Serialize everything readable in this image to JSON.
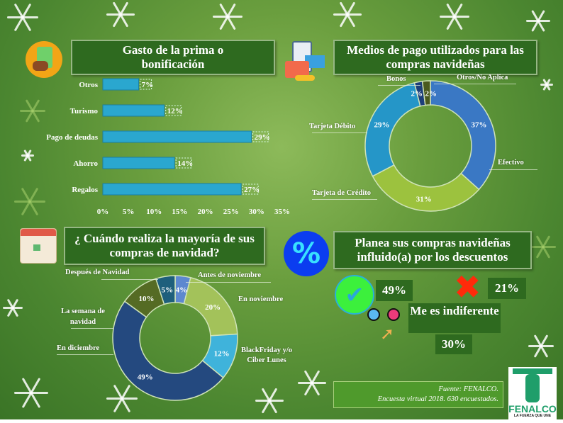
{
  "chart_data": [
    {
      "type": "bar",
      "orientation": "horizontal",
      "title": "Gasto de la prima o bonificación",
      "categories": [
        "Otros",
        "Turismo",
        "Pago de deudas",
        "Ahorro",
        "Regalos"
      ],
      "values": [
        7,
        12,
        29,
        14,
        27
      ],
      "data_labels": [
        "7%",
        "12%",
        "29%",
        "14%",
        "27%"
      ],
      "xlim": [
        0,
        35
      ],
      "x_ticks": [
        "0%",
        "5%",
        "10%",
        "15%",
        "20%",
        "25%",
        "30%",
        "35%"
      ],
      "grid": false,
      "color": "#2aa7cf"
    },
    {
      "type": "pie",
      "donut": true,
      "title": "Medios de pago utilizados para las compras navideñas",
      "categories": [
        "Efectivo",
        "Tarjeta de Crédito",
        "Tarjeta Débito",
        "Bonos",
        "Otros/No Aplica"
      ],
      "values": [
        37,
        31,
        29,
        2,
        2
      ],
      "data_labels": [
        "37%",
        "31%",
        "29%",
        "2%",
        "2%"
      ],
      "colors": [
        "#3a78c4",
        "#9cc23e",
        "#2596c8",
        "#1d3f7a",
        "#4a5a1e"
      ]
    },
    {
      "type": "pie",
      "donut": true,
      "title": "¿ Cuándo realiza la mayoría de sus compras de navidad?",
      "categories": [
        "Antes de noviembre",
        "En noviembre",
        "BlackFriday y/o Ciber Lunes",
        "En diciembre",
        "La semana de navidad",
        "Después de Navidad"
      ],
      "values": [
        4,
        20,
        12,
        49,
        10,
        5
      ],
      "data_labels": [
        "4%",
        "20%",
        "12%",
        "49%",
        "10%",
        "5%"
      ],
      "colors": [
        "#5d88d0",
        "#a3c25a",
        "#3fb3db",
        "#24497f",
        "#556b24",
        "#1e5f7c"
      ]
    },
    {
      "type": "table",
      "title": "Planea sus compras navideñas influido(a) por los descuentos",
      "categories": [
        "Sí",
        "No",
        "Me es indiferente"
      ],
      "values": [
        49,
        21,
        30
      ],
      "data_labels": [
        "49%",
        "21%",
        "30%"
      ]
    }
  ],
  "icons": {
    "money": "money-hand-icon",
    "payment": "wallet-phone-icon",
    "calendar": "calendar-icon",
    "discount": "percent-badge-icon",
    "yes": "check-badge-icon",
    "no": "red-x-icon",
    "indifferent": "cursor-choice-icon"
  },
  "discount_labels": {
    "indifferent": "Me es indiferente"
  },
  "footer": {
    "line1": "Fuente: FENALCO.",
    "line2": "Encuesta virtual 2018. 630 encuestados."
  },
  "logo": {
    "name": "FENALCO",
    "tagline": "LA FUERZA QUE UNE"
  }
}
